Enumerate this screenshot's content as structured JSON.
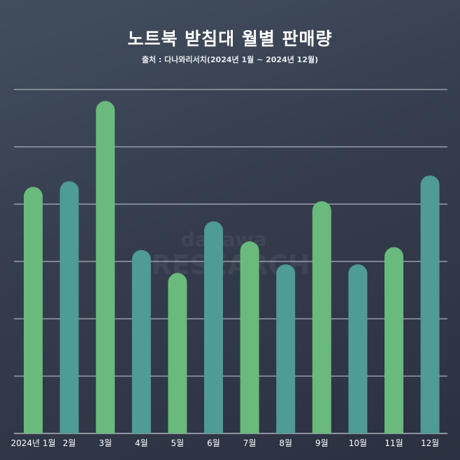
{
  "watermark": {
    "line1": "danawa",
    "line2": "RESEARCH"
  },
  "chart_data": {
    "type": "bar",
    "title": "노트북 받침대 월별 판매량",
    "subtitle": "출처 : 다나와리서치(2024년 1월 ~ 2024년 12월)",
    "categories": [
      "2024년 1월",
      "2월",
      "3월",
      "4월",
      "5월",
      "6월",
      "7월",
      "8월",
      "9월",
      "10월",
      "11월",
      "12월"
    ],
    "values": [
      4.3,
      4.4,
      5.8,
      3.2,
      2.8,
      3.7,
      3.35,
      2.95,
      4.05,
      2.95,
      3.25,
      4.5
    ],
    "ylim": [
      0,
      6
    ],
    "grid": true,
    "bar_colors": [
      "#6ab97d",
      "#4e9c94",
      "#6ab97d",
      "#4e9c94",
      "#6ab97d",
      "#4e9c94",
      "#6ab97d",
      "#4e9c94",
      "#6ab97d",
      "#4e9c94",
      "#6ab97d",
      "#4e9c94"
    ],
    "gridline_color": "#c9ced6"
  }
}
